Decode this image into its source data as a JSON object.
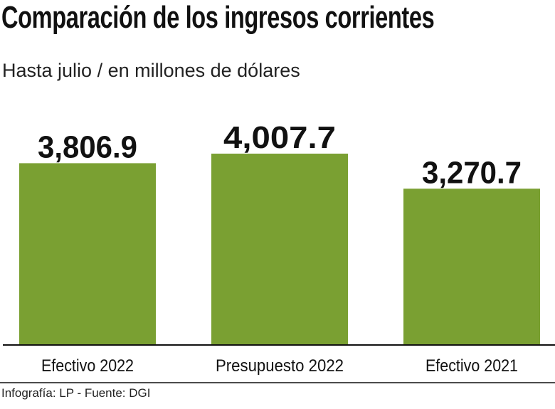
{
  "chart_data": {
    "type": "bar",
    "title": "Comparación de los ingresos corrientes",
    "subtitle": "Hasta julio / en millones de dólares",
    "categories": [
      "Efectivo 2022",
      "Presupuesto 2022",
      "Efectivo 2021"
    ],
    "values": [
      3806.9,
      4007.7,
      3270.7
    ],
    "data_labels": [
      "3,806.9",
      "4,007.7",
      "3,270.7"
    ],
    "xlabel": "",
    "ylabel": "",
    "ylim": [
      0,
      4007.7
    ],
    "grid": false,
    "bar_color": "#7aa032",
    "source": "Infografía: LP - Fuente: DGI"
  }
}
